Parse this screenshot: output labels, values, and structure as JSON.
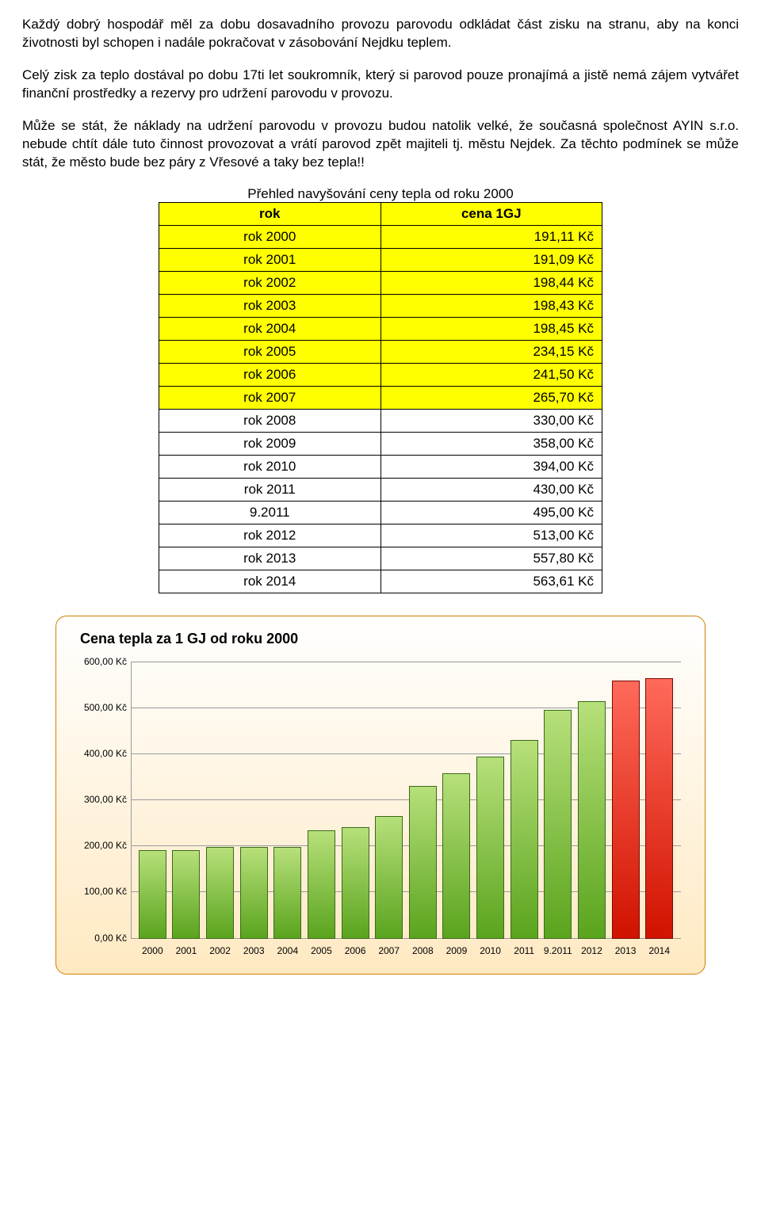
{
  "paragraphs": {
    "p1": "Každý dobrý hospodář měl za dobu dosavadního provozu parovodu odkládat část zisku na stranu, aby na konci životnosti byl schopen i nadále pokračovat v zásobování Nejdku teplem.",
    "p2": "Celý zisk za teplo dostával po dobu 17ti let soukromník, který si parovod pouze pronajímá a jistě nemá zájem vytvářet finanční prostředky a rezervy pro udržení parovodu v provozu.",
    "p3": "Může se stát, že náklady na udržení parovodu v provozu budou natolik velké, že současná společnost AYIN s.r.o. nebude chtít dále tuto činnost provozovat a vrátí parovod zpět majiteli tj. městu Nejdek. Za těchto podmínek se může stát, že město bude bez páry z Vřesové a taky bez tepla!!"
  },
  "table": {
    "title": "Přehled navyšování ceny tepla od roku 2000",
    "header_year": "rok",
    "header_price": "cena 1GJ",
    "rows": [
      {
        "year": "rok  2000",
        "price": "191,11 Kč",
        "highlight": true
      },
      {
        "year": "rok  2001",
        "price": "191,09 Kč",
        "highlight": true
      },
      {
        "year": "rok  2002",
        "price": "198,44 Kč",
        "highlight": true
      },
      {
        "year": "rok  2003",
        "price": "198,43 Kč",
        "highlight": true
      },
      {
        "year": "rok  2004",
        "price": "198,45 Kč",
        "highlight": true
      },
      {
        "year": "rok  2005",
        "price": "234,15 Kč",
        "highlight": true
      },
      {
        "year": "rok  2006",
        "price": "241,50 Kč",
        "highlight": true
      },
      {
        "year": "rok  2007",
        "price": "265,70 Kč",
        "highlight": true
      },
      {
        "year": "rok  2008",
        "price": "330,00 Kč",
        "highlight": false
      },
      {
        "year": "rok  2009",
        "price": "358,00 Kč",
        "highlight": false
      },
      {
        "year": "rok  2010",
        "price": "394,00 Kč",
        "highlight": false
      },
      {
        "year": "rok  2011",
        "price": "430,00 Kč",
        "highlight": false
      },
      {
        "year": "9.2011",
        "price": "495,00 Kč",
        "highlight": false
      },
      {
        "year": "rok  2012",
        "price": "513,00 Kč",
        "highlight": false
      },
      {
        "year": "rok  2013",
        "price": "557,80 Kč",
        "highlight": false
      },
      {
        "year": "rok  2014",
        "price": "563,61 Kč",
        "highlight": false
      }
    ]
  },
  "chart": {
    "title": "Cena tepla za 1 GJ od roku 2000",
    "type": "bar",
    "ylim": [
      0,
      600
    ],
    "ytick_step": 100,
    "ytick_labels": [
      "0,00 Kč",
      "100,00 Kč",
      "200,00 Kč",
      "300,00 Kč",
      "400,00 Kč",
      "500,00 Kč",
      "600,00 Kč"
    ],
    "categories": [
      "2000",
      "2001",
      "2002",
      "2003",
      "2004",
      "2005",
      "2006",
      "2007",
      "2008",
      "2009",
      "2010",
      "2011",
      "9.2011",
      "2012",
      "2013",
      "2014"
    ],
    "values": [
      191.11,
      191.09,
      198.44,
      198.43,
      198.45,
      234.15,
      241.5,
      265.7,
      330.0,
      358.0,
      394.0,
      430.0,
      495.0,
      513.0,
      557.8,
      563.61
    ],
    "bar_fill_green_top": "#b7e07a",
    "bar_fill_green_bottom": "#5aa41e",
    "bar_fill_red_top": "#ff6a5a",
    "bar_fill_red_bottom": "#d11200",
    "bar_border": "#3a6a1a",
    "bar_border_red": "#7a0b00",
    "red_indices": [
      14,
      15
    ],
    "grid_color": "#9a9a9a",
    "card_border": "#d08000",
    "card_bg_top": "#ffffff",
    "card_bg_bottom": "#ffe9c2",
    "title_fontsize": 18,
    "label_fontsize": 12,
    "font_family": "Arial"
  }
}
